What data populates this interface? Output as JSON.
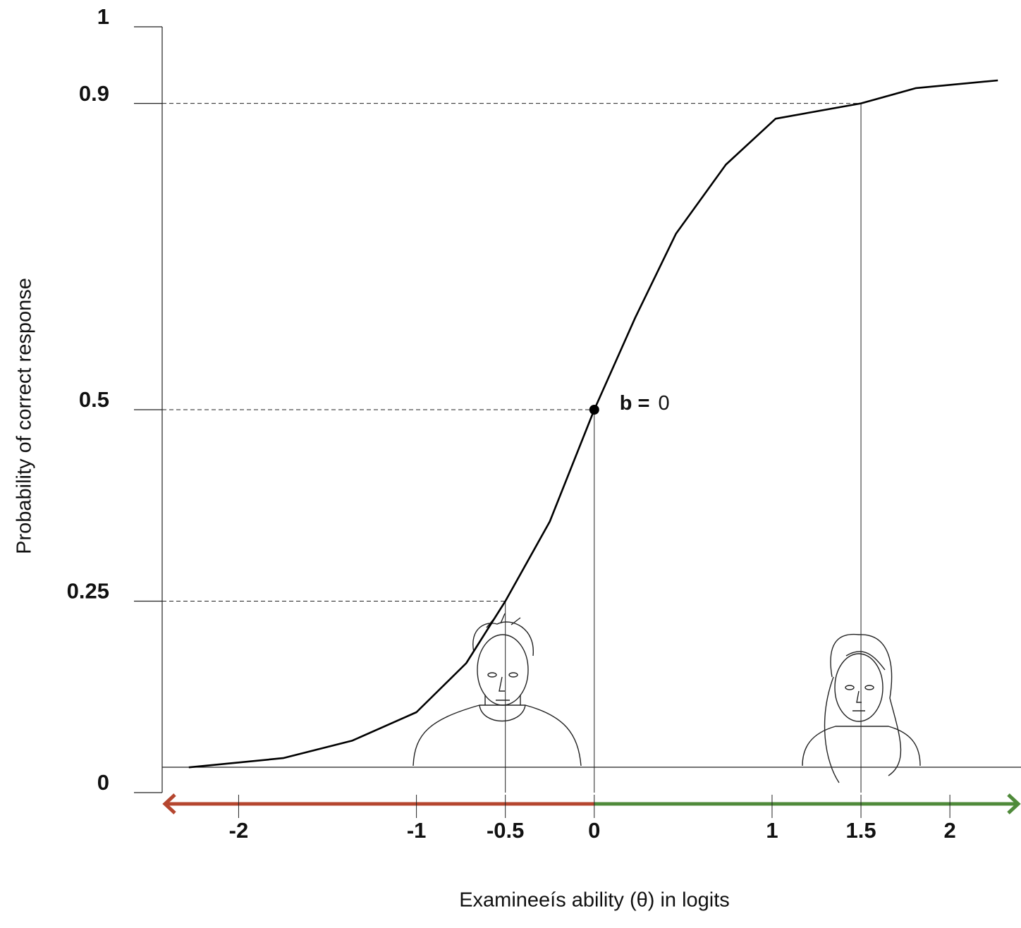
{
  "chart_data": {
    "type": "line",
    "xlabel": "Examineeís ability (θ) in logits",
    "ylabel": "Probability of correct response",
    "x": [
      -2.28,
      -1.75,
      -1.36,
      -1.0,
      -0.72,
      -0.5,
      -0.25,
      0,
      0.23,
      0.46,
      0.74,
      1.02,
      1.5,
      1.81,
      2.27
    ],
    "series": [
      {
        "color": "#000000",
        "values": [
          0.033,
          0.045,
          0.068,
          0.105,
          0.169,
          0.25,
          0.354,
          0.5,
          0.62,
          0.73,
          0.82,
          0.88,
          0.9,
          0.92,
          0.93
        ]
      }
    ],
    "xlim": [
      -2.43,
      2.4
    ],
    "ylim": [
      0,
      1
    ],
    "xticks": [
      -2,
      -1,
      -0.5,
      0,
      1,
      1.5,
      2
    ],
    "yticks": [
      0,
      0.25,
      0.5,
      0.9,
      1
    ],
    "guides": [
      {
        "x": -0.5,
        "y": 0.25
      },
      {
        "x": 0,
        "y": 0.5
      },
      {
        "x": 1.5,
        "y": 0.9
      }
    ],
    "point": {
      "x": 0,
      "y": 0.5
    },
    "annotation": "b =",
    "arrow_colors": [
      "#b5462f",
      "#4f8a3a"
    ]
  }
}
